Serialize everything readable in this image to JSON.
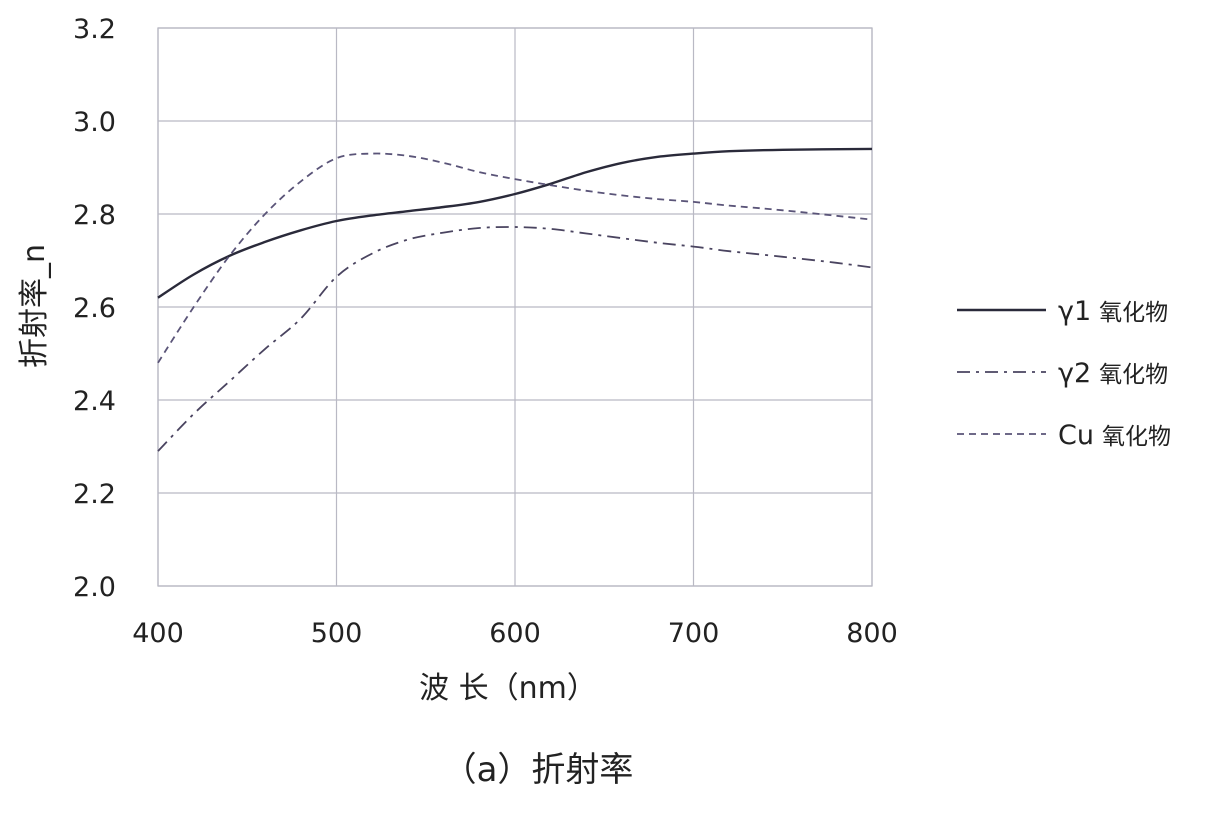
{
  "chart_data": {
    "type": "line",
    "caption": "（a）折射率",
    "xlabel": "波 长（nm）",
    "ylabel": "折射率_n",
    "xlim": [
      400,
      800
    ],
    "ylim": [
      2.0,
      3.2
    ],
    "xticks": [
      400,
      500,
      600,
      700,
      800
    ],
    "yticks": [
      "2.0",
      "2.2",
      "2.4",
      "2.6",
      "2.8",
      "3.0",
      "3.2"
    ],
    "grid": true,
    "legend_position": "right",
    "series": [
      {
        "name": "γ1 氧化物",
        "name_main": "γ1",
        "name_suffix": "氧化物",
        "style": "solid",
        "color": "#2a2a3a",
        "points": [
          [
            400,
            2.62
          ],
          [
            420,
            2.67
          ],
          [
            440,
            2.71
          ],
          [
            460,
            2.74
          ],
          [
            480,
            2.765
          ],
          [
            500,
            2.785
          ],
          [
            520,
            2.797
          ],
          [
            540,
            2.806
          ],
          [
            560,
            2.815
          ],
          [
            580,
            2.826
          ],
          [
            600,
            2.843
          ],
          [
            620,
            2.865
          ],
          [
            640,
            2.89
          ],
          [
            660,
            2.91
          ],
          [
            680,
            2.923
          ],
          [
            700,
            2.93
          ],
          [
            720,
            2.935
          ],
          [
            750,
            2.938
          ],
          [
            800,
            2.94
          ]
        ]
      },
      {
        "name": "γ2 氧化物",
        "name_main": "γ2",
        "name_suffix": "氧化物",
        "style": "dashdot",
        "color": "#4a4460",
        "points": [
          [
            400,
            2.29
          ],
          [
            420,
            2.37
          ],
          [
            440,
            2.44
          ],
          [
            460,
            2.51
          ],
          [
            480,
            2.575
          ],
          [
            500,
            2.665
          ],
          [
            520,
            2.715
          ],
          [
            540,
            2.745
          ],
          [
            560,
            2.76
          ],
          [
            580,
            2.77
          ],
          [
            600,
            2.772
          ],
          [
            620,
            2.768
          ],
          [
            640,
            2.758
          ],
          [
            660,
            2.748
          ],
          [
            680,
            2.738
          ],
          [
            700,
            2.73
          ],
          [
            720,
            2.72
          ],
          [
            750,
            2.708
          ],
          [
            780,
            2.695
          ],
          [
            800,
            2.685
          ]
        ]
      },
      {
        "name": "Cu 氧化物",
        "name_main": "Cu",
        "name_suffix": "氧化物",
        "style": "dashed",
        "color": "#5a5478",
        "points": [
          [
            400,
            2.48
          ],
          [
            420,
            2.6
          ],
          [
            440,
            2.71
          ],
          [
            460,
            2.8
          ],
          [
            480,
            2.87
          ],
          [
            500,
            2.92
          ],
          [
            520,
            2.93
          ],
          [
            540,
            2.925
          ],
          [
            560,
            2.91
          ],
          [
            580,
            2.89
          ],
          [
            600,
            2.875
          ],
          [
            620,
            2.862
          ],
          [
            640,
            2.85
          ],
          [
            660,
            2.84
          ],
          [
            680,
            2.832
          ],
          [
            700,
            2.826
          ],
          [
            720,
            2.818
          ],
          [
            750,
            2.808
          ],
          [
            800,
            2.788
          ]
        ]
      }
    ]
  }
}
